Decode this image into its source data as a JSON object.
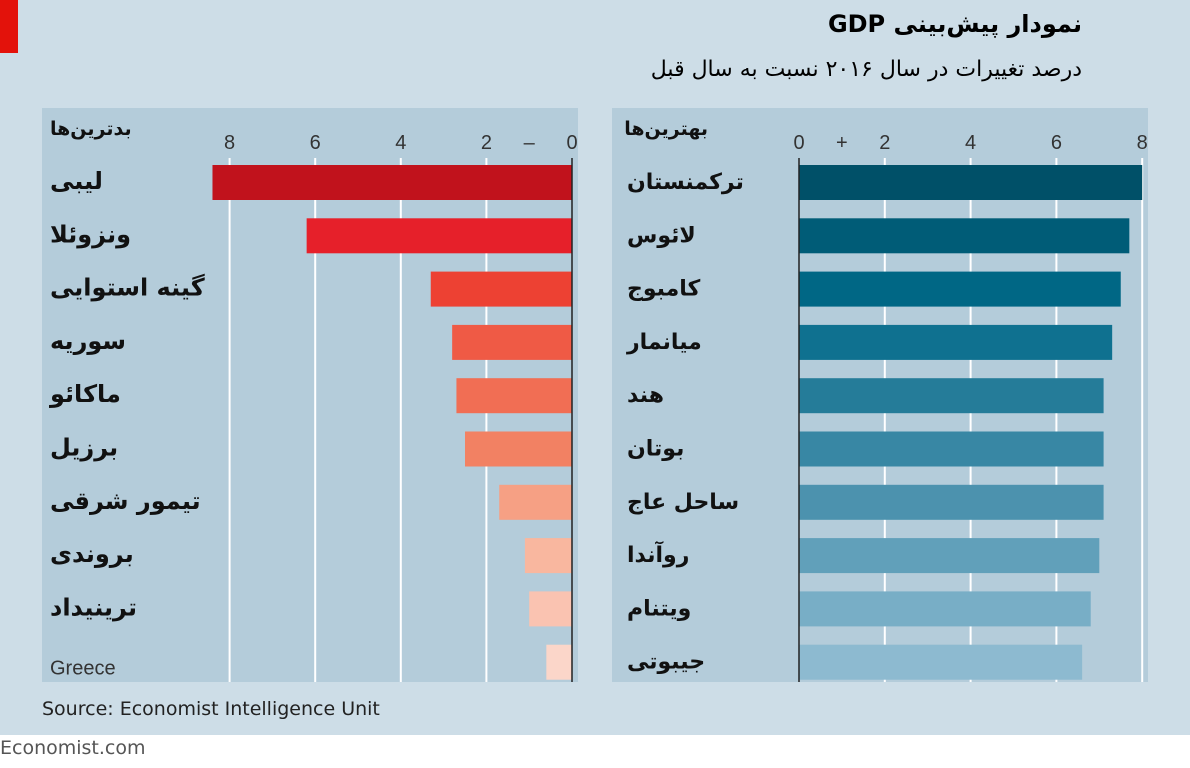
{
  "title": "نمودار پیش‌بینی GDP",
  "subtitle": "درصد تغییرات در سال ۲۰۱۶ نسبت به سال قبل",
  "source": "Source: Economist Intelligence Unit",
  "brand": "Economist.com",
  "colors": {
    "worst": [
      "#c1121c",
      "#e6202a",
      "#ed4133",
      "#ef5a45",
      "#f16e54",
      "#f28163",
      "#f6a084",
      "#f9b79f",
      "#fac3b1",
      "#fbd6c9"
    ],
    "best": [
      "#005068",
      "#005c77",
      "#006785",
      "#0f7190",
      "#257c99",
      "#3887a4",
      "#4c92ae",
      "#61a0ba",
      "#78aec6",
      "#8dbad0"
    ]
  },
  "chart_data": [
    {
      "type": "bar",
      "orientation": "horizontal",
      "panel_label": "بدترین‌ها",
      "categories": [
        "لیبی",
        "ونزوئلا",
        "گینه استوایی",
        "سوریه",
        "ماکائو",
        "برزیل",
        "تیمور شرقی",
        "بروندی",
        "ترینیداد",
        "Greece"
      ],
      "values": [
        -8.4,
        -6.2,
        -3.3,
        -2.8,
        -2.7,
        -2.5,
        -1.7,
        -1.1,
        -1.0,
        -0.6
      ],
      "xlim": [
        -8.6,
        0
      ],
      "tick_labels": [
        "8",
        "6",
        "4",
        "2",
        "–",
        "0"
      ],
      "grid": true
    },
    {
      "type": "bar",
      "orientation": "horizontal",
      "panel_label": "بهترین‌ها",
      "categories": [
        "ترکمنستان",
        "لائوس",
        "کامبوج",
        "میانمار",
        "هند",
        "بوتان",
        "ساحل عاج",
        "روآندا",
        "ویتنام",
        "جیبوتی"
      ],
      "values": [
        8.0,
        7.7,
        7.5,
        7.3,
        7.1,
        7.1,
        7.1,
        7.0,
        6.8,
        6.6
      ],
      "xlim": [
        0,
        8.1
      ],
      "tick_labels": [
        "0",
        "+",
        "2",
        "4",
        "6",
        "8"
      ],
      "grid": true
    }
  ]
}
